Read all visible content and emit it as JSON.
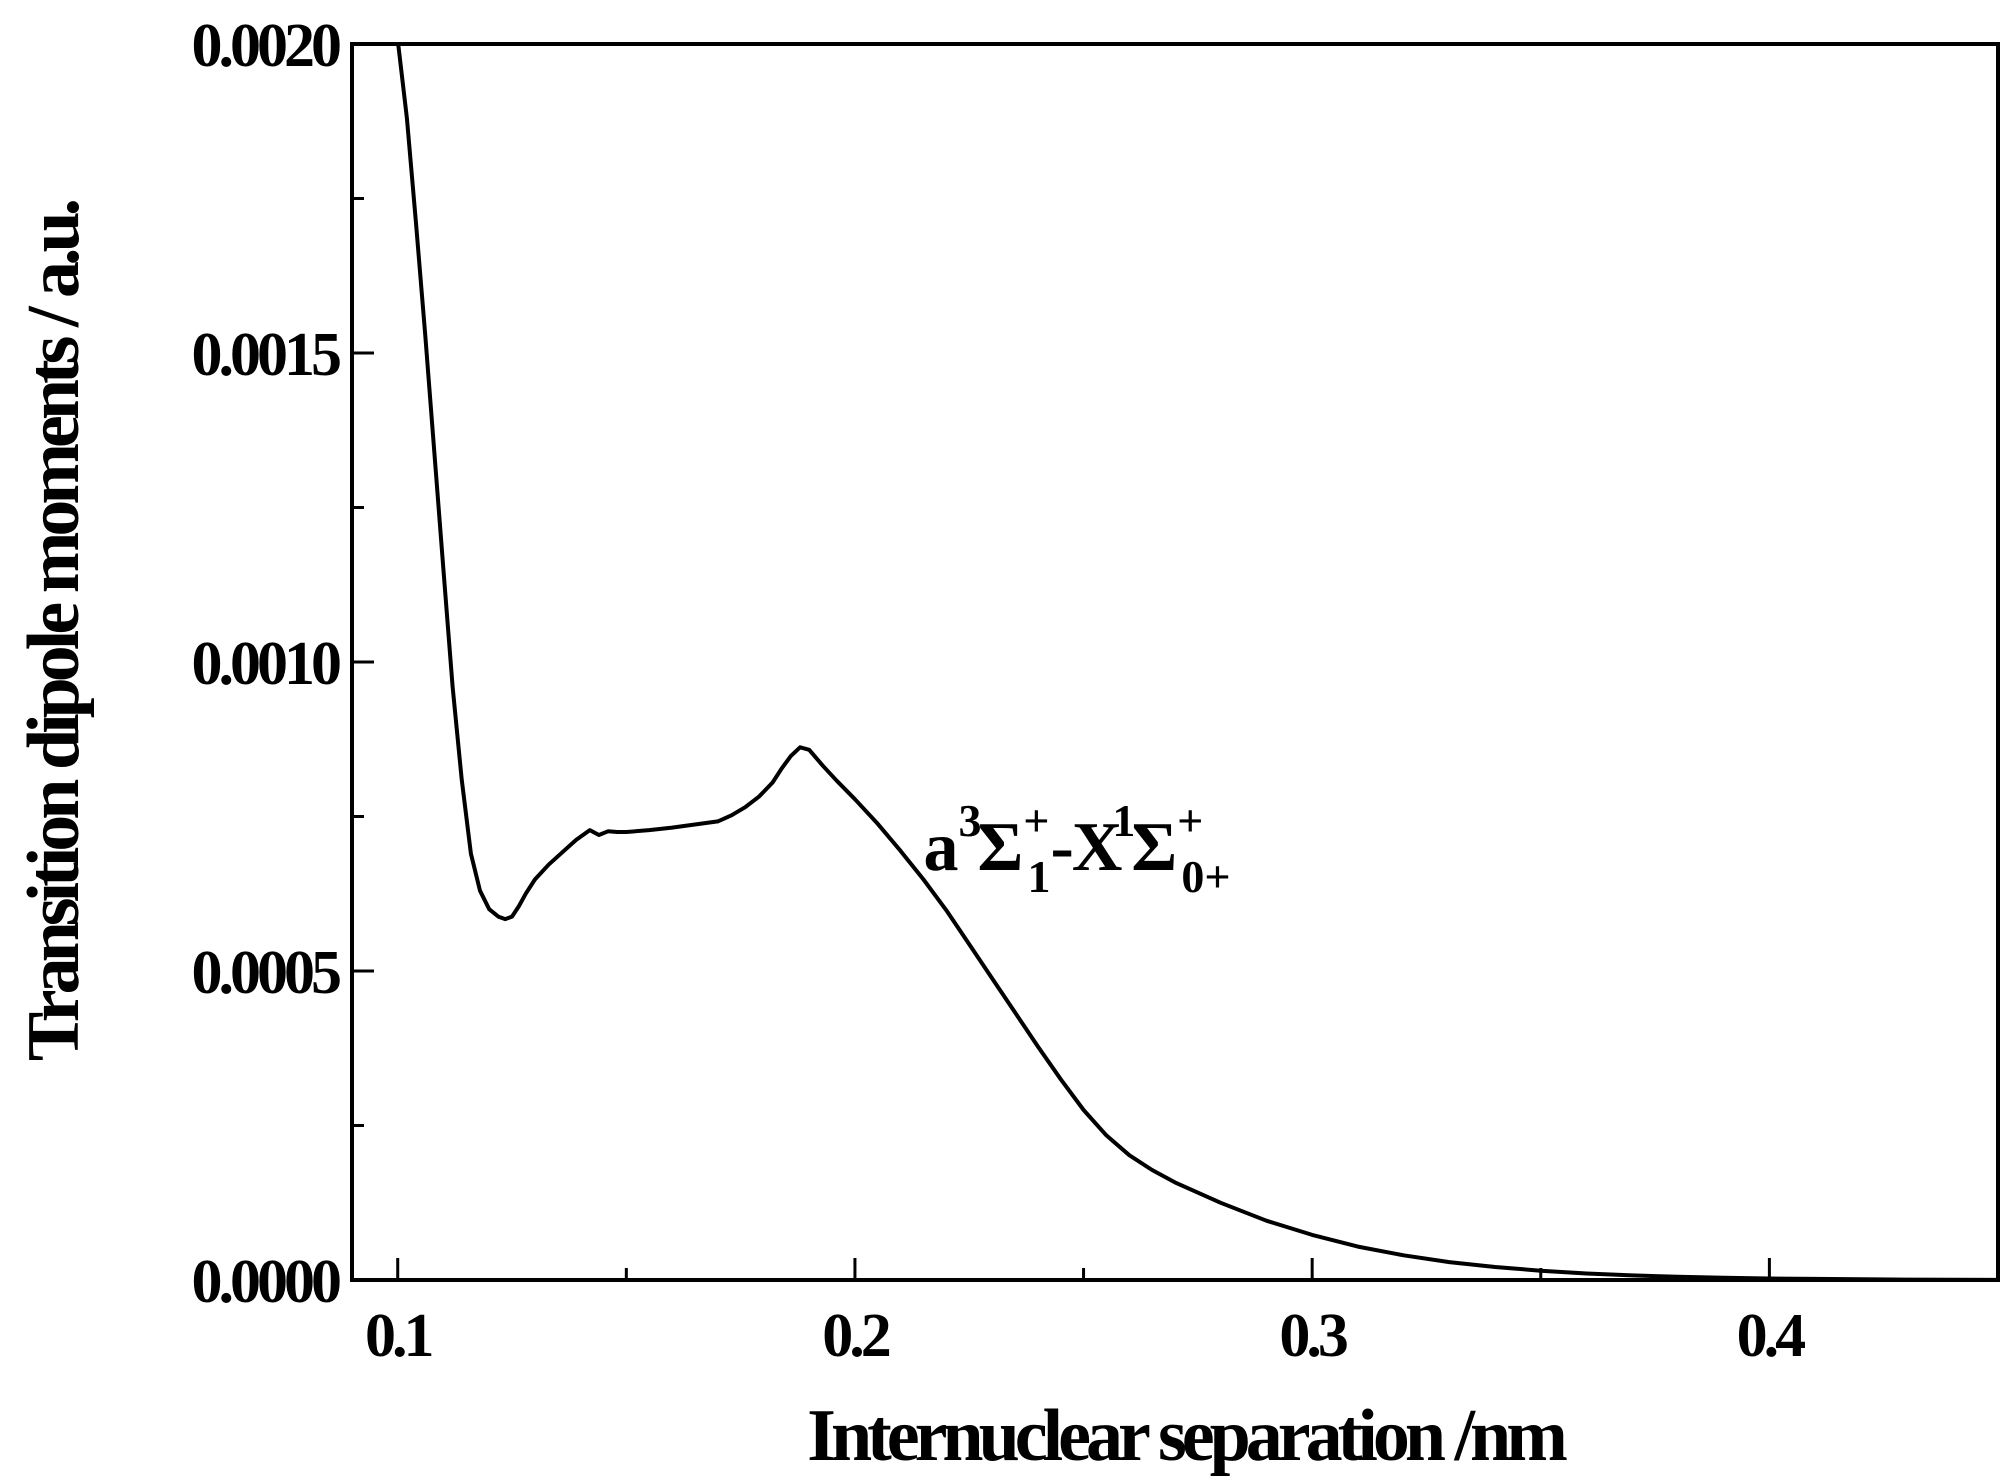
{
  "chart_data": {
    "type": "line",
    "title": "",
    "xlabel": "Internuclear separation /nm",
    "ylabel": "Transition dipole moments / a.u.",
    "xlim": [
      0.09,
      0.45
    ],
    "ylim": [
      0.0,
      0.002
    ],
    "xticks": [
      {
        "value": 0.1,
        "label": "0.1"
      },
      {
        "value": 0.2,
        "label": "0.2"
      },
      {
        "value": 0.3,
        "label": "0.3"
      },
      {
        "value": 0.4,
        "label": "0.4"
      }
    ],
    "xminor": [
      0.15,
      0.25,
      0.35
    ],
    "yticks": [
      {
        "value": 0.0,
        "label": "0.0000"
      },
      {
        "value": 0.0005,
        "label": "0.0005"
      },
      {
        "value": 0.001,
        "label": "0.0010"
      },
      {
        "value": 0.0015,
        "label": "0.0015"
      },
      {
        "value": 0.002,
        "label": "0.0020"
      }
    ],
    "yminor": [
      0.00025,
      0.00075,
      0.00125,
      0.00175
    ],
    "grid": false,
    "line_color": "#000000",
    "annotation": {
      "main1": "a",
      "sup1": "3",
      "sym1": "Σ",
      "supsign1": "+",
      "sub1": "1",
      "dash": "-",
      "main2": "X",
      "sup2": "1",
      "sym2": "Σ",
      "supsign2": "+",
      "sub2": "0+",
      "x": 0.215,
      "y": 0.00068
    },
    "series": [
      {
        "x": [
          0.1001,
          0.102,
          0.104,
          0.106,
          0.108,
          0.11,
          0.112,
          0.114,
          0.116,
          0.118,
          0.12,
          0.122,
          0.1235,
          0.125,
          0.1265,
          0.128,
          0.13,
          0.133,
          0.136,
          0.139,
          0.142,
          0.144,
          0.146,
          0.148,
          0.15,
          0.155,
          0.16,
          0.165,
          0.17,
          0.173,
          0.176,
          0.179,
          0.182,
          0.184,
          0.186,
          0.188,
          0.19,
          0.193,
          0.196,
          0.2,
          0.205,
          0.21,
          0.215,
          0.22,
          0.225,
          0.23,
          0.235,
          0.24,
          0.245,
          0.25,
          0.255,
          0.26,
          0.265,
          0.27,
          0.28,
          0.29,
          0.3,
          0.31,
          0.32,
          0.33,
          0.34,
          0.35,
          0.36,
          0.37,
          0.38,
          0.39,
          0.4,
          0.41,
          0.42,
          0.43,
          0.44,
          0.45
        ],
        "y": [
          0.002,
          0.00188,
          0.00171,
          0.00153,
          0.00134,
          0.00115,
          0.00096,
          0.00081,
          0.00069,
          0.00063,
          0.0006,
          0.000588,
          0.000584,
          0.000588,
          0.000605,
          0.000625,
          0.000648,
          0.000672,
          0.000692,
          0.000712,
          0.000728,
          0.00072,
          0.000726,
          0.000725,
          0.000725,
          0.000728,
          0.000732,
          0.000737,
          0.000742,
          0.000752,
          0.000765,
          0.000782,
          0.000805,
          0.000828,
          0.000848,
          0.000862,
          0.000858,
          0.000832,
          0.000808,
          0.000778,
          0.000738,
          0.000694,
          0.000648,
          0.000598,
          0.000543,
          0.000488,
          0.000433,
          0.000378,
          0.000325,
          0.000275,
          0.000234,
          0.000202,
          0.000178,
          0.000158,
          0.000125,
          9.6e-05,
          7.3e-05,
          5.4e-05,
          4e-05,
          2.9e-05,
          2.1e-05,
          1.5e-05,
          1.05e-05,
          7.5e-06,
          5.2e-06,
          3.6e-06,
          2.5e-06,
          1.7e-06,
          1.1e-06,
          7e-07,
          4e-07,
          2e-07
        ]
      }
    ]
  }
}
